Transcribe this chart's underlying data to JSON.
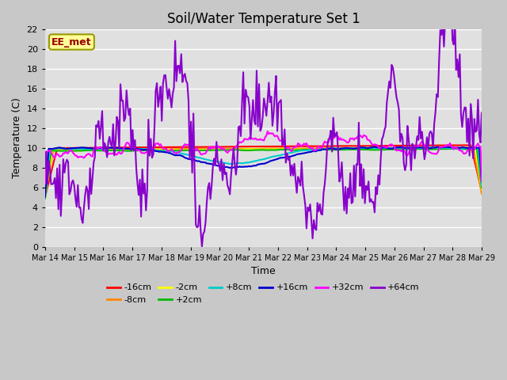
{
  "title": "Soil/Water Temperature Set 1",
  "xlabel": "Time",
  "ylabel": "Temperature (C)",
  "ylim": [
    0,
    22
  ],
  "yticks": [
    0,
    2,
    4,
    6,
    8,
    10,
    12,
    14,
    16,
    18,
    20,
    22
  ],
  "n_days": 15,
  "xtick_labels": [
    "Mar 14",
    "Mar 15",
    "Mar 16",
    "Mar 17",
    "Mar 18",
    "Mar 19",
    "Mar 20",
    "Mar 21",
    "Mar 22",
    "Mar 23",
    "Mar 24",
    "Mar 25",
    "Mar 26",
    "Mar 27",
    "Mar 28",
    "Mar 29"
  ],
  "fig_facecolor": "#c8c8c8",
  "ax_facecolor": "#e0e0e0",
  "grid_color": "#ffffff",
  "series": [
    {
      "label": "-16cm",
      "color": "#ff0000"
    },
    {
      "label": "-8cm",
      "color": "#ff8800"
    },
    {
      "label": "-2cm",
      "color": "#ffff00"
    },
    {
      "label": "+2cm",
      "color": "#00bb00"
    },
    {
      "label": "+8cm",
      "color": "#00cccc"
    },
    {
      "label": "+16cm",
      "color": "#0000cc"
    },
    {
      "label": "+32cm",
      "color": "#ff00ff"
    },
    {
      "label": "+64cm",
      "color": "#8800cc"
    }
  ],
  "annotation": {
    "text": "EE_met",
    "color": "#990000",
    "facecolor": "#ffff99",
    "edgecolor": "#999900"
  },
  "title_fontsize": 12,
  "axis_label_fontsize": 9,
  "tick_fontsize": 8,
  "xtick_fontsize": 7,
  "legend_ncol_row1": 6,
  "legend_ncol_row2": 2
}
